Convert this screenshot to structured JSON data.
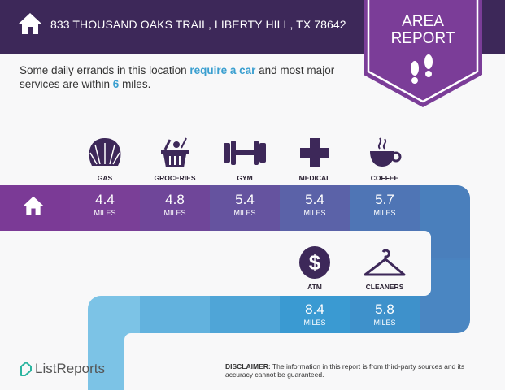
{
  "header": {
    "address": "833 THOUSAND OAKS TRAIL, LIBERTY HILL, TX 78642",
    "home_icon": "home-icon"
  },
  "badge": {
    "line1": "AREA",
    "line2": "REPORT",
    "icon": "footprints-icon",
    "color": "#7b3d98"
  },
  "intro": {
    "pre": "Some daily errands in this location ",
    "highlight1": "require a car",
    "mid": " and most major services are within ",
    "highlight2": "6",
    "post": " miles."
  },
  "unit": "MILES",
  "services": [
    {
      "label": "GAS",
      "value": "4.4",
      "icon": "shell-icon",
      "color": "#7a3f97"
    },
    {
      "label": "GROCERIES",
      "value": "4.8",
      "icon": "basket-icon",
      "color": "#6f4699"
    },
    {
      "label": "GYM",
      "value": "5.4",
      "icon": "dumbbell-icon",
      "color": "#65539f"
    },
    {
      "label": "MEDICAL",
      "value": "5.4",
      "icon": "medical-cross-icon",
      "color": "#5b62a8"
    },
    {
      "label": "COFFEE",
      "value": "5.7",
      "icon": "coffee-cup-icon",
      "color": "#4f75b5"
    },
    {
      "label": "ATM",
      "value": "8.4",
      "icon": "dollar-icon",
      "color": "#3a9ad2"
    },
    {
      "label": "CLEANERS",
      "value": "5.8",
      "icon": "hanger-icon",
      "color": "#3e91cb"
    }
  ],
  "footer": {
    "logo": "ListReports",
    "disclaimer_label": "DISCLAIMER:",
    "disclaimer": " The information in this report is from third-party sources and its accuracy cannot be guaranteed."
  }
}
